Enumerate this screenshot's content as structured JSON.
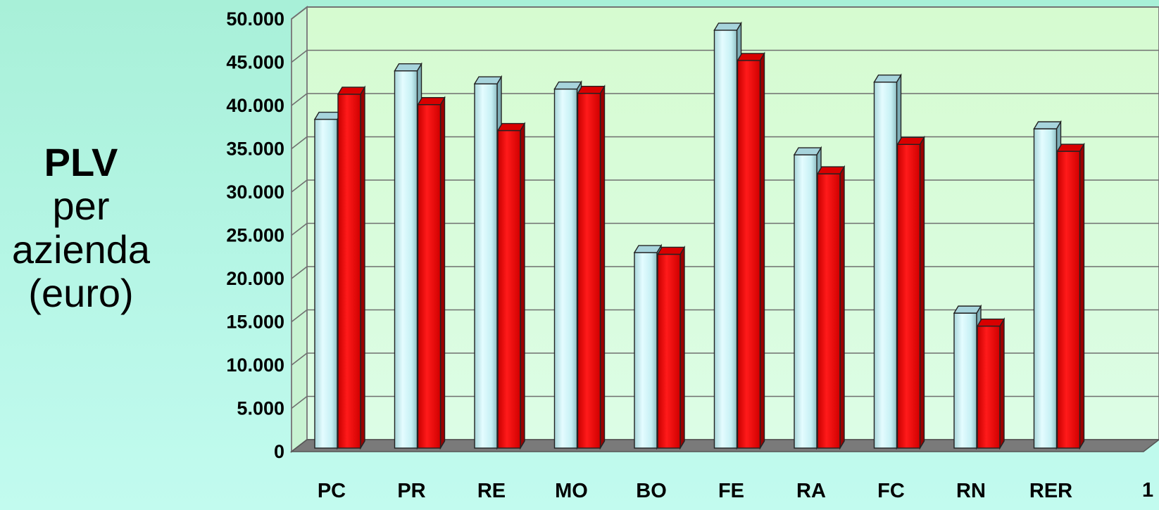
{
  "side_title": {
    "line1": "PLV",
    "line2": "per",
    "line3": "azienda",
    "line4": "(euro)"
  },
  "corner_text": "1",
  "colors": {
    "series1": "#c8f4f8",
    "series2": "#ff0000",
    "floor": "#7a7a7a",
    "plot_bg_top": "#d6fbd0",
    "plot_bg_bottom": "#dcfde6"
  },
  "chart_data": {
    "type": "bar",
    "categories": [
      "PC",
      "PR",
      "RE",
      "MO",
      "BO",
      "FE",
      "RA",
      "FC",
      "RN",
      "RER"
    ],
    "series": [
      {
        "values": [
          38000,
          43600,
          42100,
          41500,
          22600,
          48300,
          33900,
          42300,
          15600,
          36900
        ]
      },
      {
        "values": [
          40900,
          39700,
          36700,
          41000,
          22400,
          44800,
          31700,
          35100,
          14100,
          34300
        ]
      }
    ],
    "ylim": [
      0,
      50000
    ],
    "yticks": [
      "0",
      "5.000",
      "10.000",
      "15.000",
      "20.000",
      "25.000",
      "30.000",
      "35.000",
      "40.000",
      "45.000",
      "50.000"
    ],
    "grid": true,
    "style": "3d"
  }
}
